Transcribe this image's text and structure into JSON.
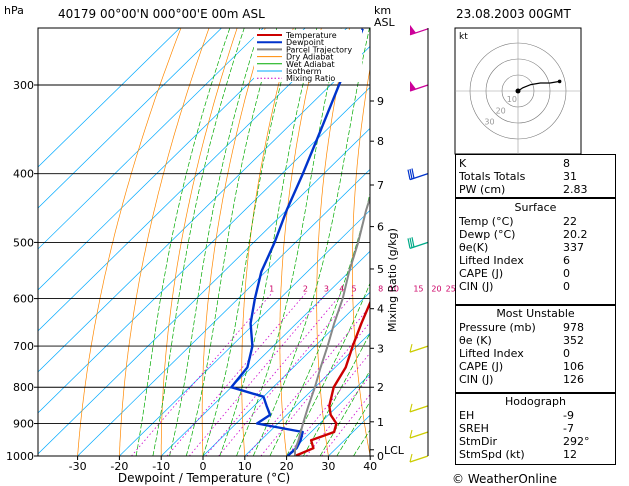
{
  "header": {
    "pressure_unit": "hPa",
    "station": "40179  00°00'N  000°00'E  00m  ASL",
    "height_unit_km": "km",
    "height_unit_asl": "ASL",
    "datetime": "23.08.2003  00GMT"
  },
  "footer": {
    "xlabel": "Dewpoint / Temperature (°C)",
    "copyright": "© WeatherOnline"
  },
  "legend": {
    "items": [
      {
        "label": "Temperature",
        "color": "#cc0000",
        "style": "solid"
      },
      {
        "label": "Dewpoint",
        "color": "#0033cc",
        "style": "solid"
      },
      {
        "label": "Parcel Trajectory",
        "color": "#888888",
        "style": "solid"
      },
      {
        "label": "Dry Adiabat",
        "color": "#ff8800",
        "style": "solid"
      },
      {
        "label": "Wet Adiabat",
        "color": "#00aa00",
        "style": "solid"
      },
      {
        "label": "Isotherm",
        "color": "#00aaff",
        "style": "solid"
      },
      {
        "label": "Mixing Ratio",
        "color": "#cc00cc",
        "style": "dotted"
      }
    ]
  },
  "hodograph": {
    "unit_label": "kt",
    "ring_labels": [
      "10",
      "20",
      "30"
    ],
    "points": [
      [
        0,
        0
      ],
      [
        3,
        2
      ],
      [
        8,
        4
      ],
      [
        14,
        5
      ],
      [
        20,
        5
      ],
      [
        26,
        6
      ]
    ]
  },
  "indices": {
    "basic": [
      {
        "label": "K",
        "value": "8"
      },
      {
        "label": "Totals Totals",
        "value": "31"
      },
      {
        "label": "PW (cm)",
        "value": "2.83"
      }
    ],
    "surface": {
      "title": "Surface",
      "rows": [
        {
          "label": "Temp (°C)",
          "value": "22"
        },
        {
          "label": "Dewp (°C)",
          "value": "20.2"
        },
        {
          "label": "θe(K)",
          "value": "337"
        },
        {
          "label": "Lifted Index",
          "value": "6"
        },
        {
          "label": "CAPE (J)",
          "value": "0"
        },
        {
          "label": "CIN (J)",
          "value": "0"
        }
      ]
    },
    "most_unstable": {
      "title": "Most Unstable",
      "rows": [
        {
          "label": "Pressure (mb)",
          "value": "978"
        },
        {
          "label": "θe (K)",
          "value": "352"
        },
        {
          "label": "Lifted Index",
          "value": "0"
        },
        {
          "label": "CAPE (J)",
          "value": "106"
        },
        {
          "label": "CIN (J)",
          "value": "126"
        }
      ]
    },
    "hodo": {
      "title": "Hodograph",
      "rows": [
        {
          "label": "EH",
          "value": "-9"
        },
        {
          "label": "SREH",
          "value": "-7"
        },
        {
          "label": "StmDir",
          "value": "292°"
        },
        {
          "label": "StmSpd (kt)",
          "value": "12"
        }
      ]
    }
  },
  "chart_data": {
    "type": "line",
    "subtype": "skew-T log-P",
    "xlabel": "Dewpoint / Temperature (°C)",
    "ylabel_right": "Mixing Ratio (g/kg)",
    "pressure_unit": "hPa",
    "pressure_levels": [
      300,
      400,
      500,
      600,
      700,
      800,
      900,
      1000
    ],
    "pressure_range": [
      250,
      1000
    ],
    "temp_ticks": [
      -30,
      -20,
      -10,
      0,
      10,
      20,
      30,
      40
    ],
    "km_ticks": [
      {
        "label": "9",
        "p": 316
      },
      {
        "label": "8",
        "p": 360
      },
      {
        "label": "7",
        "p": 415
      },
      {
        "label": "6",
        "p": 475
      },
      {
        "label": "5",
        "p": 545
      },
      {
        "label": "4",
        "p": 620
      },
      {
        "label": "3",
        "p": 705
      },
      {
        "label": "2",
        "p": 800
      },
      {
        "label": "1",
        "p": 895
      },
      {
        "label": "LCL",
        "p": 980
      },
      {
        "label": "0",
        "p": 1000
      }
    ],
    "mixing_ratio_labels": [
      "1",
      "2",
      "3",
      "4",
      "5",
      "8",
      "10",
      "15",
      "20",
      "25"
    ],
    "mixing_ratio_label_p": 590,
    "series": [
      {
        "name": "Temperature",
        "color": "#cc0000",
        "points": [
          [
            1000,
            22
          ],
          [
            975,
            24.5
          ],
          [
            950,
            22
          ],
          [
            925,
            25.5
          ],
          [
            900,
            24
          ],
          [
            875,
            20.5
          ],
          [
            850,
            18
          ],
          [
            800,
            14.5
          ],
          [
            750,
            12.5
          ],
          [
            700,
            9
          ],
          [
            650,
            5.5
          ],
          [
            600,
            2
          ],
          [
            550,
            -3
          ],
          [
            500,
            -6.5
          ],
          [
            450,
            -11
          ],
          [
            400,
            -16.5
          ],
          [
            350,
            -24
          ],
          [
            300,
            -30
          ],
          [
            275,
            -35
          ],
          [
            250,
            -40.5
          ]
        ]
      },
      {
        "name": "Dewpoint",
        "color": "#0033cc",
        "points": [
          [
            1000,
            20.2
          ],
          [
            975,
            20.5
          ],
          [
            950,
            19.5
          ],
          [
            925,
            18
          ],
          [
            900,
            5
          ],
          [
            875,
            6
          ],
          [
            850,
            3
          ],
          [
            825,
            0
          ],
          [
            800,
            -10
          ],
          [
            750,
            -11
          ],
          [
            700,
            -15
          ],
          [
            650,
            -21
          ],
          [
            600,
            -26
          ],
          [
            550,
            -31
          ],
          [
            500,
            -35
          ],
          [
            450,
            -40
          ],
          [
            400,
            -45
          ],
          [
            350,
            -51
          ],
          [
            300,
            -58
          ],
          [
            250,
            -66
          ]
        ]
      },
      {
        "name": "Parcel Trajectory",
        "color": "#888888",
        "points": [
          [
            1000,
            22
          ],
          [
            980,
            20.5
          ],
          [
            950,
            19
          ],
          [
            900,
            16
          ],
          [
            850,
            13
          ],
          [
            800,
            10
          ],
          [
            750,
            6.5
          ],
          [
            700,
            3
          ],
          [
            650,
            -1
          ],
          [
            600,
            -5
          ],
          [
            550,
            -10
          ],
          [
            500,
            -15
          ],
          [
            450,
            -21
          ],
          [
            400,
            -27
          ],
          [
            350,
            -35
          ],
          [
            300,
            -44
          ],
          [
            250,
            -53
          ]
        ]
      }
    ],
    "wind_barbs": [
      {
        "p": 250,
        "color": "#cc0099",
        "shape": "pennant"
      },
      {
        "p": 300,
        "color": "#cc0099",
        "shape": "pennant"
      },
      {
        "p": 400,
        "color": "#0033cc",
        "shape": "barb"
      },
      {
        "p": 500,
        "color": "#00aa88",
        "shape": "barb"
      },
      {
        "p": 700,
        "color": "#cccc00",
        "shape": "light"
      },
      {
        "p": 850,
        "color": "#cccc00",
        "shape": "light"
      },
      {
        "p": 925,
        "color": "#cccc00",
        "shape": "light"
      },
      {
        "p": 1000,
        "color": "#cccc00",
        "shape": "light"
      }
    ]
  }
}
